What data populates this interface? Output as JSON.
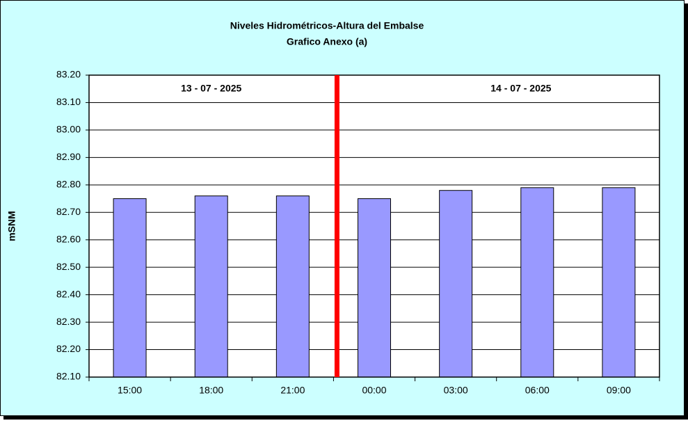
{
  "chart_data": {
    "type": "bar",
    "title": "Niveles Hidrométricos-Altura del Embalse",
    "subtitle": "Grafico Anexo (a)",
    "y_label": "mSNM",
    "annotations": [
      "13 - 07 - 2025",
      "14 - 07 - 2025"
    ],
    "categories": [
      "15:00",
      "18:00",
      "21:00",
      "00:00",
      "03:00",
      "06:00",
      "09:00"
    ],
    "values": [
      82.75,
      82.76,
      82.76,
      82.75,
      82.78,
      82.79,
      82.79
    ],
    "color": "#9999ff",
    "ylim": [
      82.1,
      83.2
    ],
    "yticks": [
      {
        "value": 82.1,
        "label": "82.10"
      },
      {
        "value": 82.2,
        "label": "82.20"
      },
      {
        "value": 82.3,
        "label": "82.30"
      },
      {
        "value": 82.4,
        "label": "82.40"
      },
      {
        "value": 82.5,
        "label": "82.50"
      },
      {
        "value": 82.6,
        "label": "82.60"
      },
      {
        "value": 82.7,
        "label": "82.70"
      },
      {
        "value": 82.8,
        "label": "82.80"
      },
      {
        "value": 82.9,
        "label": "82.90"
      },
      {
        "value": 83.0,
        "label": "83.00"
      },
      {
        "value": 83.1,
        "label": "83.10"
      },
      {
        "value": 83.2,
        "label": "83.20"
      }
    ],
    "grid": true
  }
}
